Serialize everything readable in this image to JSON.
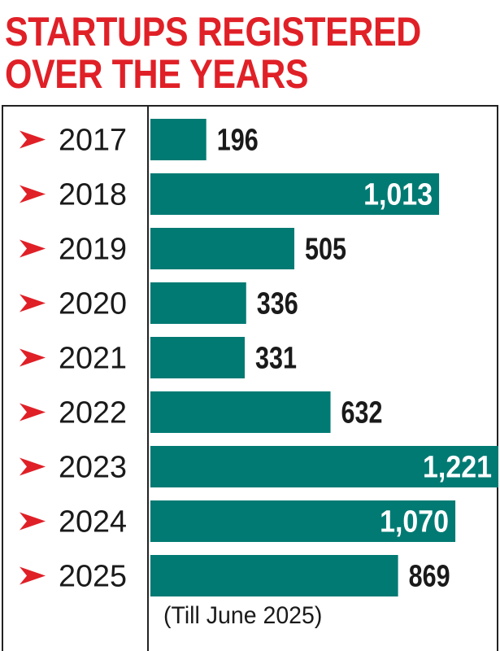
{
  "title": {
    "line1": "STARTUPS REGISTERED",
    "line2": "OVER THE YEARS"
  },
  "note": "(Till June 2025)",
  "colors": {
    "title": "#e02027",
    "bar": "#007a73",
    "arrow": "#e02027",
    "inside_label": "#ffffff",
    "outside_label": "#1a1a1a",
    "frame": "#222222"
  },
  "chart_data": {
    "type": "bar",
    "orientation": "horizontal",
    "title": "STARTUPS REGISTERED OVER THE YEARS",
    "categories": [
      "2017",
      "2018",
      "2019",
      "2020",
      "2021",
      "2022",
      "2023",
      "2024",
      "2025"
    ],
    "values": [
      196,
      1013,
      505,
      336,
      331,
      632,
      1221,
      1070,
      869
    ],
    "value_labels": [
      "196",
      "1,013",
      "505",
      "336",
      "331",
      "632",
      "1,221",
      "1,070",
      "869"
    ],
    "xlim": [
      0,
      1221
    ],
    "grid": false,
    "legend": "none",
    "annotation": "(Till June 2025)"
  }
}
